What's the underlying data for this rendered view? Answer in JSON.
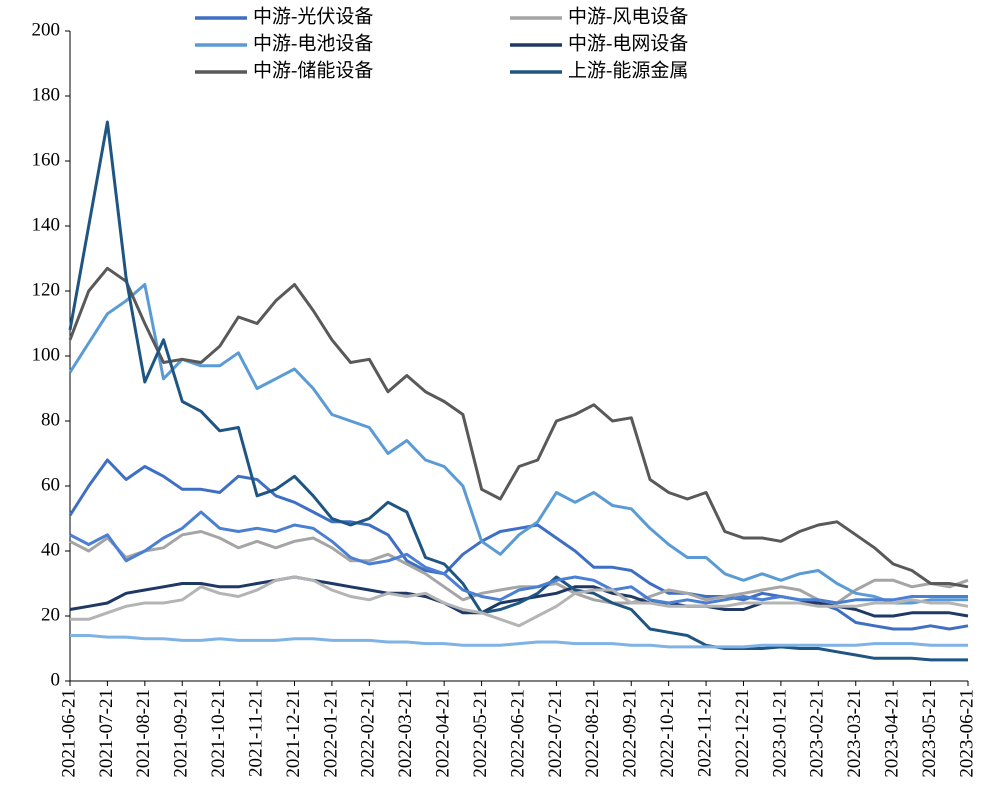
{
  "chart_data": {
    "type": "line",
    "x": [
      0,
      0.5,
      1,
      1.5,
      2,
      2.5,
      3,
      3.5,
      4,
      4.5,
      5,
      5.5,
      6,
      6.5,
      7,
      7.5,
      8,
      8.5,
      9,
      9.5,
      10,
      10.5,
      11,
      11.5,
      12,
      12.5,
      13,
      13.5,
      14,
      14.5,
      15,
      15.5,
      16,
      16.5,
      17,
      17.5,
      18,
      18.5,
      19,
      19.5,
      20,
      20.5,
      21,
      21.5,
      22,
      22.5,
      23,
      23.5,
      24
    ],
    "xlim": [
      0,
      24
    ],
    "xticks": [
      {
        "value": 0,
        "label": "2021-06-21"
      },
      {
        "value": 1,
        "label": "2021-07-21"
      },
      {
        "value": 2,
        "label": "2021-08-21"
      },
      {
        "value": 3,
        "label": "2021-09-21"
      },
      {
        "value": 4,
        "label": "2021-10-21"
      },
      {
        "value": 5,
        "label": "2021-11-21"
      },
      {
        "value": 6,
        "label": "2021-12-21"
      },
      {
        "value": 7,
        "label": "2022-01-21"
      },
      {
        "value": 8,
        "label": "2022-02-21"
      },
      {
        "value": 9,
        "label": "2022-03-21"
      },
      {
        "value": 10,
        "label": "2022-04-21"
      },
      {
        "value": 11,
        "label": "2022-05-21"
      },
      {
        "value": 12,
        "label": "2022-06-21"
      },
      {
        "value": 13,
        "label": "2022-07-21"
      },
      {
        "value": 14,
        "label": "2022-08-21"
      },
      {
        "value": 15,
        "label": "2022-09-21"
      },
      {
        "value": 16,
        "label": "2022-10-21"
      },
      {
        "value": 17,
        "label": "2022-11-21"
      },
      {
        "value": 18,
        "label": "2022-12-21"
      },
      {
        "value": 19,
        "label": "2023-01-21"
      },
      {
        "value": 20,
        "label": "2023-02-21"
      },
      {
        "value": 21,
        "label": "2023-03-21"
      },
      {
        "value": 22,
        "label": "2023-04-21"
      },
      {
        "value": 23,
        "label": "2023-05-21"
      },
      {
        "value": 24,
        "label": "2023-06-21"
      }
    ],
    "ylim": [
      0,
      200
    ],
    "yticks": [
      0,
      20,
      40,
      60,
      80,
      100,
      120,
      140,
      160,
      180,
      200
    ],
    "grid": false,
    "legend": "top",
    "series": [
      {
        "name": "中游-光伏设备",
        "color": "#3f6fc4",
        "values": [
          51,
          60,
          68,
          62,
          66,
          63,
          59,
          59,
          58,
          63,
          62,
          57,
          55,
          52,
          49,
          49,
          48,
          45,
          37,
          34,
          33,
          39,
          43,
          46,
          47,
          48,
          44,
          40,
          35,
          35,
          34,
          30,
          27,
          27,
          26,
          26,
          25,
          27,
          26,
          25,
          24,
          22,
          18,
          17,
          16,
          16,
          17,
          16,
          17
        ]
      },
      {
        "name": "中游-风电设备",
        "color": "#a5a5a5",
        "values": [
          43,
          40,
          44,
          38,
          40,
          41,
          45,
          46,
          44,
          41,
          43,
          41,
          43,
          44,
          41,
          37,
          37,
          39,
          36,
          33,
          29,
          25,
          27,
          28,
          29,
          29,
          30,
          27,
          25,
          24,
          24,
          26,
          28,
          27,
          25,
          26,
          27,
          28,
          29,
          28,
          25,
          24,
          28,
          31,
          31,
          29,
          30,
          29,
          31
        ]
      },
      {
        "name": "中游-电池设备",
        "color": "#5b9bd5",
        "values": [
          95,
          104,
          113,
          117,
          122,
          93,
          99,
          97,
          97,
          101,
          90,
          93,
          96,
          90,
          82,
          80,
          78,
          70,
          74,
          68,
          66,
          60,
          43,
          39,
          45,
          49,
          58,
          55,
          58,
          54,
          53,
          47,
          42,
          38,
          38,
          33,
          31,
          33,
          31,
          33,
          34,
          30,
          27,
          26,
          24,
          24,
          25,
          25,
          25
        ]
      },
      {
        "name": "中游-电网设备",
        "color": "#1f3864",
        "values": [
          22,
          23,
          24,
          27,
          28,
          29,
          30,
          30,
          29,
          29,
          30,
          31,
          32,
          31,
          30,
          29,
          28,
          27,
          27,
          26,
          24,
          21,
          21,
          24,
          25,
          26,
          27,
          29,
          29,
          27,
          26,
          24,
          24,
          23,
          23,
          22,
          22,
          24,
          24,
          24,
          24,
          23,
          22,
          20,
          20,
          21,
          21,
          21,
          20
        ]
      },
      {
        "name": "中游-储能设备",
        "color": "#595959",
        "values": [
          105,
          120,
          127,
          123,
          110,
          98,
          99,
          98,
          103,
          112,
          110,
          117,
          122,
          114,
          105,
          98,
          99,
          89,
          94,
          89,
          86,
          82,
          59,
          56,
          66,
          68,
          80,
          82,
          85,
          80,
          81,
          62,
          58,
          56,
          58,
          46,
          44,
          44,
          43,
          46,
          48,
          49,
          45,
          41,
          36,
          34,
          30,
          30,
          29
        ]
      },
      {
        "name": "上游-能源金属",
        "color": "#1f5582",
        "values": [
          108,
          140,
          172,
          124,
          92,
          105,
          86,
          83,
          77,
          78,
          57,
          59,
          63,
          57,
          50,
          48,
          50,
          55,
          52,
          38,
          36,
          30,
          21,
          22,
          24,
          27,
          32,
          28,
          27,
          24,
          22,
          16,
          15,
          14,
          11,
          10,
          10,
          10,
          10.5,
          10,
          10,
          9,
          8,
          7,
          7,
          7,
          6.5,
          6.5,
          6.5
        ]
      },
      {
        "color": "#4a7fd4",
        "values": [
          45,
          42,
          45,
          37,
          40,
          44,
          47,
          52,
          47,
          46,
          47,
          46,
          48,
          47,
          43,
          38,
          36,
          37,
          39,
          35,
          33,
          28,
          26,
          25,
          28,
          29,
          31,
          32,
          31,
          28,
          29,
          25,
          24,
          25,
          24,
          25,
          26,
          25,
          26,
          25,
          25,
          24,
          25,
          25,
          25,
          26,
          26,
          26,
          26
        ]
      },
      {
        "color": "#b4b4b4",
        "values": [
          19,
          19,
          21,
          23,
          24,
          24,
          25,
          29,
          27,
          26,
          28,
          31,
          32,
          31,
          28,
          26,
          25,
          27,
          26,
          27,
          24,
          22,
          21,
          19,
          17,
          20,
          23,
          27,
          28,
          28,
          24,
          24,
          23,
          23,
          23,
          23,
          24,
          24,
          24,
          24,
          23,
          23,
          23,
          24,
          24,
          25,
          24,
          24,
          23
        ]
      },
      {
        "color": "#7fb2e5",
        "values": [
          14,
          14,
          13.5,
          13.5,
          13,
          13,
          12.5,
          12.5,
          13,
          12.5,
          12.5,
          12.5,
          13,
          13,
          12.5,
          12.5,
          12.5,
          12,
          12,
          11.5,
          11.5,
          11,
          11,
          11,
          11.5,
          12,
          12,
          11.5,
          11.5,
          11.5,
          11,
          11,
          10.5,
          10.5,
          10.5,
          10.5,
          10.5,
          11,
          11,
          11,
          11,
          11,
          11,
          11.5,
          11.5,
          11.5,
          11,
          11,
          11
        ]
      }
    ]
  }
}
